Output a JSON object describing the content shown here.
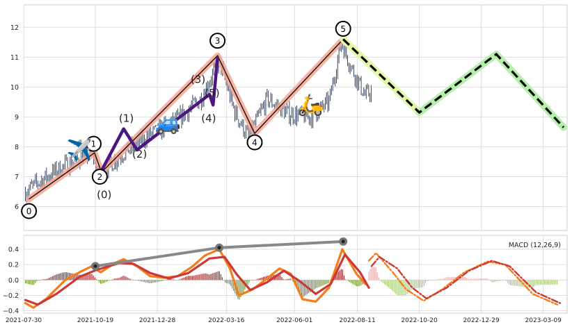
{
  "chart_data": [
    {
      "type": "line",
      "name": "price-panel",
      "x_range": [
        "2021-07-30",
        "2023-04-05"
      ],
      "ylim": [
        5.2,
        12.75
      ],
      "yticks": [
        6,
        7,
        8,
        9,
        10,
        11,
        12
      ],
      "grid": true,
      "price": {
        "color": "#3a4a63",
        "anchors": [
          [
            "2021-08-01",
            6.5
          ],
          [
            "2021-08-20",
            6.9
          ],
          [
            "2021-09-10",
            7.3
          ],
          [
            "2021-10-01",
            7.6
          ],
          [
            "2021-10-16",
            7.8
          ],
          [
            "2021-10-23",
            7.05
          ],
          [
            "2021-11-20",
            7.8
          ],
          [
            "2021-12-20",
            8.4
          ],
          [
            "2022-01-20",
            8.9
          ],
          [
            "2022-02-15",
            9.6
          ],
          [
            "2022-03-08",
            10.9
          ],
          [
            "2022-03-25",
            9.2
          ],
          [
            "2022-04-10",
            8.3
          ],
          [
            "2022-05-01",
            9.6
          ],
          [
            "2022-05-25",
            9.1
          ],
          [
            "2022-06-20",
            9.0
          ],
          [
            "2022-07-10",
            9.5
          ],
          [
            "2022-07-24",
            11.5
          ],
          [
            "2022-08-05",
            10.6
          ],
          [
            "2022-08-20",
            9.7
          ],
          [
            "2022-08-28",
            9.9
          ]
        ]
      },
      "wave_labels": [
        {
          "x": "2021-08-05",
          "y": 5.85,
          "label": "0",
          "circled": true
        },
        {
          "x": "2021-10-17",
          "y": 8.1,
          "label": "1",
          "circled": true
        },
        {
          "x": "2021-10-24",
          "y": 7.0,
          "label": "2",
          "circled": true
        },
        {
          "x": "2022-03-06",
          "y": 11.55,
          "label": "3",
          "circled": true
        },
        {
          "x": "2022-04-17",
          "y": 8.15,
          "label": "4",
          "circled": true
        },
        {
          "x": "2022-07-26",
          "y": 11.95,
          "label": "5",
          "circled": true
        },
        {
          "x": "2021-10-29",
          "y": 6.4,
          "label": "(0)",
          "circled": false
        },
        {
          "x": "2021-11-23",
          "y": 8.95,
          "label": "(1)",
          "circled": false
        },
        {
          "x": "2021-12-08",
          "y": 7.75,
          "label": "(2)",
          "circled": false
        },
        {
          "x": "2022-02-12",
          "y": 10.25,
          "label": "(3)",
          "circled": false
        },
        {
          "x": "2022-02-28",
          "y": 9.8,
          "label": "(5)",
          "circled": false
        },
        {
          "x": "2022-02-24",
          "y": 8.95,
          "label": "(4)",
          "circled": false
        }
      ],
      "impulse_wave": {
        "color": "#f4a593",
        "points": [
          [
            "2021-08-05",
            6.25
          ],
          [
            "2021-10-18",
            7.8
          ],
          [
            "2021-10-26",
            7.15
          ],
          [
            "2022-03-06",
            11.05
          ],
          [
            "2022-04-17",
            8.45
          ],
          [
            "2022-07-26",
            11.6
          ]
        ]
      },
      "sub_wave": {
        "color": "#4b1680",
        "points": [
          [
            "2021-10-26",
            7.2
          ],
          [
            "2021-11-20",
            8.6
          ],
          [
            "2021-12-05",
            7.9
          ],
          [
            "2022-02-25",
            9.75
          ],
          [
            "2022-03-01",
            9.4
          ],
          [
            "2022-03-06",
            10.95
          ]
        ]
      },
      "forecast": {
        "highlight_color": "#b4eeaa",
        "near_color": "#e2f7a8",
        "line_color": "#000000",
        "points": [
          [
            "2022-07-26",
            11.6
          ],
          [
            "2022-10-20",
            9.15
          ],
          [
            "2023-01-15",
            11.1
          ],
          [
            "2023-04-01",
            8.65
          ]
        ]
      },
      "emojis": [
        {
          "x": "2021-10-01",
          "y": 7.9,
          "glyph": "✈️",
          "name": "airplane"
        },
        {
          "x": "2022-01-09",
          "y": 8.8,
          "glyph": "🚙",
          "name": "car"
        },
        {
          "x": "2022-06-19",
          "y": 9.4,
          "glyph": "🛵",
          "name": "scooter"
        }
      ]
    },
    {
      "type": "line",
      "name": "macd-panel",
      "title": "MACD (12,26,9)",
      "x_range": [
        "2021-07-30",
        "2023-04-05"
      ],
      "ylim": [
        -0.43,
        0.58
      ],
      "yticks": [
        0.4,
        0.2,
        0.0,
        -0.2,
        -0.4
      ],
      "ytick_labels": [
        "0.4",
        "0.2",
        "0.0",
        "−0.2",
        "−0.4"
      ],
      "xtick_dates": [
        "2021-07-30",
        "2021-10-19",
        "2021-12-28",
        "2022-03-16",
        "2022-06-01",
        "2022-08-11",
        "2022-10-20",
        "2022-12-29",
        "2023-03-09"
      ],
      "xtick_labels": [
        "2021-07-30",
        "2021-10-19",
        "2021-12-28",
        "2022-03-16",
        "2022-06-01",
        "2022-08-11",
        "2022-10-20",
        "2022-12-29",
        "2023-03-09"
      ],
      "grid": true,
      "series": [
        {
          "key": "macd",
          "color": "#f57c1a",
          "points": [
            [
              "2021-08-01",
              -0.3
            ],
            [
              "2021-08-10",
              -0.36
            ],
            [
              "2021-08-25",
              -0.24
            ],
            [
              "2021-09-15",
              0.0
            ],
            [
              "2021-10-01",
              0.1
            ],
            [
              "2021-10-15",
              0.18
            ],
            [
              "2021-10-25",
              0.1
            ],
            [
              "2021-11-10",
              0.22
            ],
            [
              "2021-11-20",
              0.27
            ],
            [
              "2021-12-05",
              0.18
            ],
            [
              "2021-12-20",
              0.05
            ],
            [
              "2022-01-05",
              0.03
            ],
            [
              "2022-01-20",
              0.05
            ],
            [
              "2022-02-05",
              0.17
            ],
            [
              "2022-02-20",
              0.32
            ],
            [
              "2022-03-08",
              0.4
            ],
            [
              "2022-03-20",
              0.15
            ],
            [
              "2022-03-30",
              -0.2
            ],
            [
              "2022-04-15",
              -0.12
            ],
            [
              "2022-05-01",
              0.02
            ],
            [
              "2022-05-15",
              0.15
            ],
            [
              "2022-05-28",
              0.08
            ],
            [
              "2022-06-10",
              -0.25
            ],
            [
              "2022-06-25",
              -0.28
            ],
            [
              "2022-07-10",
              -0.1
            ],
            [
              "2022-07-25",
              0.4
            ],
            [
              "2022-08-10",
              0.08
            ],
            [
              "2022-08-20",
              -0.05
            ]
          ]
        },
        {
          "key": "signal",
          "color": "#cc3838",
          "points": [
            [
              "2021-08-01",
              -0.26
            ],
            [
              "2021-08-15",
              -0.32
            ],
            [
              "2021-09-05",
              -0.18
            ],
            [
              "2021-10-01",
              0.04
            ],
            [
              "2021-10-20",
              0.13
            ],
            [
              "2021-11-15",
              0.22
            ],
            [
              "2021-12-01",
              0.21
            ],
            [
              "2021-12-20",
              0.09
            ],
            [
              "2022-01-10",
              0.02
            ],
            [
              "2022-02-01",
              0.09
            ],
            [
              "2022-02-25",
              0.28
            ],
            [
              "2022-03-14",
              0.3
            ],
            [
              "2022-03-28",
              0.07
            ],
            [
              "2022-04-12",
              -0.13
            ],
            [
              "2022-05-01",
              -0.03
            ],
            [
              "2022-05-20",
              0.12
            ],
            [
              "2022-06-05",
              0.0
            ],
            [
              "2022-06-25",
              -0.18
            ],
            [
              "2022-07-12",
              -0.05
            ],
            [
              "2022-07-28",
              0.33
            ],
            [
              "2022-08-14",
              0.1
            ],
            [
              "2022-08-24",
              -0.1
            ]
          ]
        },
        {
          "key": "macd-forecast",
          "color": "#f57c1a",
          "dashed": true,
          "points": [
            [
              "2022-08-24",
              0.25
            ],
            [
              "2022-09-01",
              0.35
            ],
            [
              "2022-09-20",
              0.1
            ],
            [
              "2022-10-05",
              -0.12
            ],
            [
              "2022-10-25",
              -0.27
            ],
            [
              "2022-11-15",
              -0.12
            ],
            [
              "2022-12-10",
              0.1
            ],
            [
              "2023-01-05",
              0.24
            ],
            [
              "2023-01-25",
              0.2
            ],
            [
              "2023-02-25",
              -0.18
            ],
            [
              "2023-03-25",
              -0.32
            ]
          ]
        },
        {
          "key": "signal-forecast",
          "color": "#cc3838",
          "dashed": true,
          "points": [
            [
              "2022-08-27",
              0.18
            ],
            [
              "2022-09-05",
              0.3
            ],
            [
              "2022-09-25",
              0.15
            ],
            [
              "2022-10-12",
              -0.1
            ],
            [
              "2022-10-28",
              -0.24
            ],
            [
              "2022-11-20",
              -0.1
            ],
            [
              "2022-12-15",
              0.12
            ],
            [
              "2023-01-10",
              0.25
            ],
            [
              "2023-01-30",
              0.18
            ],
            [
              "2023-03-01",
              -0.16
            ],
            [
              "2023-03-28",
              -0.3
            ]
          ]
        }
      ],
      "trend_line": {
        "color": "#888888",
        "points": [
          [
            "2021-10-19",
            0.18
          ],
          [
            "2022-03-08",
            0.42
          ],
          [
            "2022-07-26",
            0.5
          ]
        ]
      },
      "histogram": {
        "pos_color": "#9c2121",
        "neg_color": "#6b8e23",
        "forecast_pos_color": "#e8a8a8",
        "forecast_neg_color": "#a8c87a"
      }
    }
  ]
}
